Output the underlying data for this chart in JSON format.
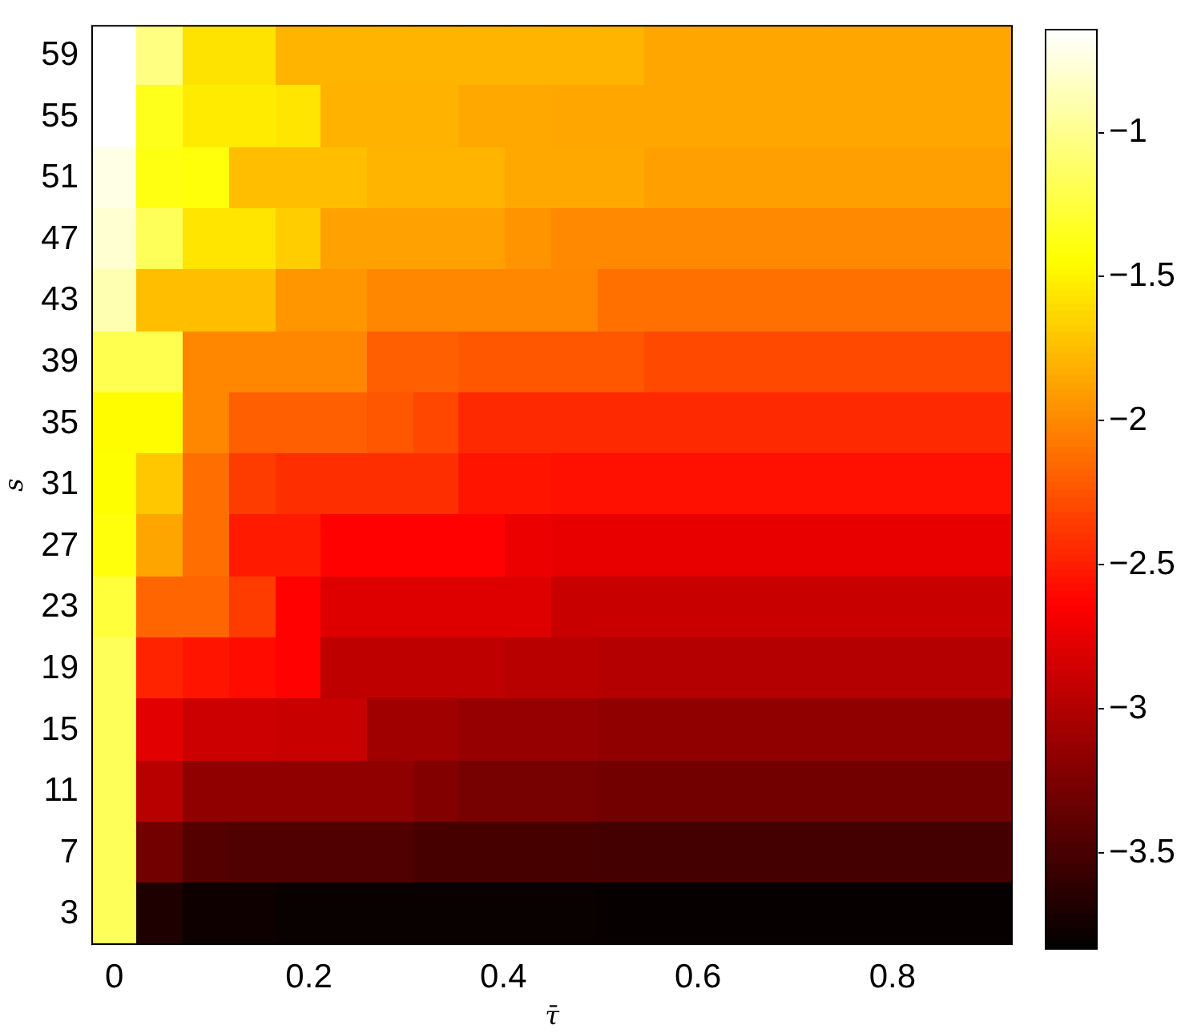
{
  "chart_data": {
    "type": "heatmap",
    "xlabel": "τ̄",
    "ylabel": "s",
    "x": [
      0,
      0.0474,
      0.0947,
      0.1421,
      0.1895,
      0.2368,
      0.2842,
      0.3316,
      0.3789,
      0.4263,
      0.4737,
      0.5211,
      0.5684,
      0.6158,
      0.6632,
      0.7105,
      0.7579,
      0.8053,
      0.8526,
      0.9
    ],
    "xlim": [
      -0.0237,
      0.9237
    ],
    "xticks": [
      0,
      0.2,
      0.4,
      0.6,
      0.8
    ],
    "y_categories": [
      "59",
      "55",
      "51",
      "47",
      "43",
      "39",
      "35",
      "31",
      "27",
      "23",
      "19",
      "15",
      "11",
      "7",
      "3"
    ],
    "cells": [
      [
        -0.64,
        -1.03,
        -1.57,
        -1.57,
        -1.79,
        -1.79,
        -1.79,
        -1.79,
        -1.79,
        -1.79,
        -1.79,
        -1.79,
        -1.85,
        -1.85,
        -1.85,
        -1.85,
        -1.85,
        -1.85,
        -1.85,
        -1.85
      ],
      [
        -0.64,
        -1.35,
        -1.53,
        -1.53,
        -1.56,
        -1.8,
        -1.8,
        -1.8,
        -1.84,
        -1.84,
        -1.85,
        -1.85,
        -1.85,
        -1.85,
        -1.85,
        -1.85,
        -1.85,
        -1.85,
        -1.85,
        -1.85
      ],
      [
        -0.72,
        -1.38,
        -1.41,
        -1.74,
        -1.74,
        -1.74,
        -1.79,
        -1.79,
        -1.79,
        -1.84,
        -1.84,
        -1.84,
        -1.89,
        -1.89,
        -1.89,
        -1.89,
        -1.89,
        -1.89,
        -1.89,
        -1.89
      ],
      [
        -0.78,
        -1.16,
        -1.56,
        -1.56,
        -1.67,
        -1.88,
        -1.88,
        -1.88,
        -1.88,
        -1.94,
        -1.99,
        -1.99,
        -1.99,
        -1.99,
        -1.99,
        -1.99,
        -1.99,
        -1.99,
        -1.99,
        -1.99
      ],
      [
        -0.88,
        -1.74,
        -1.74,
        -1.74,
        -1.93,
        -1.93,
        -2.0,
        -2.0,
        -2.0,
        -2.0,
        -2.0,
        -2.11,
        -2.11,
        -2.11,
        -2.11,
        -2.11,
        -2.11,
        -2.11,
        -2.11,
        -2.11
      ],
      [
        -1.19,
        -1.19,
        -2.0,
        -2.0,
        -2.0,
        -2.0,
        -2.19,
        -2.19,
        -2.23,
        -2.23,
        -2.23,
        -2.23,
        -2.29,
        -2.29,
        -2.29,
        -2.29,
        -2.29,
        -2.29,
        -2.29,
        -2.29
      ],
      [
        -1.45,
        -1.45,
        -2.0,
        -2.19,
        -2.19,
        -2.19,
        -2.23,
        -2.3,
        -2.44,
        -2.44,
        -2.44,
        -2.44,
        -2.44,
        -2.44,
        -2.44,
        -2.44,
        -2.44,
        -2.44,
        -2.44,
        -2.44
      ],
      [
        -1.44,
        -1.7,
        -2.12,
        -2.35,
        -2.42,
        -2.42,
        -2.42,
        -2.42,
        -2.54,
        -2.54,
        -2.56,
        -2.56,
        -2.56,
        -2.56,
        -2.56,
        -2.56,
        -2.56,
        -2.56,
        -2.56,
        -2.56
      ],
      [
        -1.4,
        -1.86,
        -2.12,
        -2.51,
        -2.51,
        -2.63,
        -2.63,
        -2.63,
        -2.63,
        -2.72,
        -2.74,
        -2.74,
        -2.74,
        -2.74,
        -2.74,
        -2.74,
        -2.74,
        -2.74,
        -2.74,
        -2.74
      ],
      [
        -1.25,
        -2.16,
        -2.16,
        -2.35,
        -2.63,
        -2.79,
        -2.79,
        -2.79,
        -2.79,
        -2.79,
        -2.89,
        -2.89,
        -2.89,
        -2.89,
        -2.89,
        -2.89,
        -2.89,
        -2.89,
        -2.89,
        -2.89
      ],
      [
        -1.16,
        -2.47,
        -2.54,
        -2.58,
        -2.63,
        -2.94,
        -2.94,
        -2.94,
        -2.94,
        -2.96,
        -2.96,
        -2.98,
        -2.98,
        -2.98,
        -2.98,
        -2.98,
        -2.98,
        -2.98,
        -2.98,
        -2.98
      ],
      [
        -1.16,
        -2.77,
        -2.87,
        -2.87,
        -2.89,
        -2.89,
        -3.08,
        -3.08,
        -3.12,
        -3.12,
        -3.12,
        -3.15,
        -3.15,
        -3.15,
        -3.15,
        -3.15,
        -3.15,
        -3.15,
        -3.15,
        -3.15
      ],
      [
        -1.16,
        -2.96,
        -3.15,
        -3.15,
        -3.15,
        -3.15,
        -3.15,
        -3.22,
        -3.27,
        -3.27,
        -3.27,
        -3.29,
        -3.29,
        -3.29,
        -3.29,
        -3.29,
        -3.29,
        -3.29,
        -3.29,
        -3.29
      ],
      [
        -1.16,
        -3.29,
        -3.43,
        -3.45,
        -3.45,
        -3.45,
        -3.45,
        -3.5,
        -3.5,
        -3.5,
        -3.5,
        -3.51,
        -3.51,
        -3.51,
        -3.51,
        -3.51,
        -3.51,
        -3.51,
        -3.51,
        -3.51
      ],
      [
        -1.16,
        -3.69,
        -3.76,
        -3.76,
        -3.79,
        -3.79,
        -3.79,
        -3.79,
        -3.79,
        -3.79,
        -3.79,
        -3.8,
        -3.8,
        -3.8,
        -3.8,
        -3.8,
        -3.8,
        -3.8,
        -3.8,
        -3.8
      ]
    ],
    "clim": [
      -3.83,
      -0.64
    ],
    "cticks": [
      -3.5,
      -3,
      -2.5,
      -2,
      -1.5,
      -1
    ]
  }
}
